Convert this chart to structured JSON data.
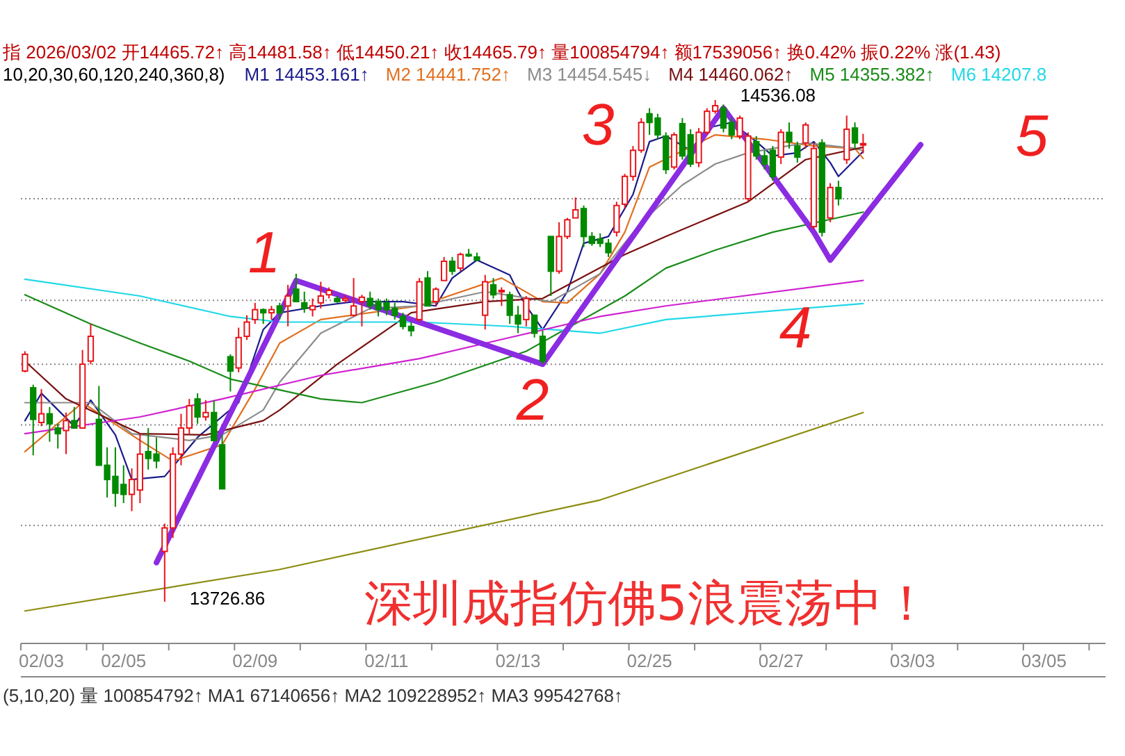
{
  "chart_data": {
    "type": "candlestick",
    "categories": [
      null,
      null,
      "02/03",
      null,
      null,
      null,
      null,
      null,
      null,
      null,
      null,
      null,
      "02/05",
      null,
      null,
      null,
      null,
      null,
      null,
      null,
      null,
      null,
      null,
      null,
      null,
      null,
      null,
      null,
      "02/09",
      null,
      null,
      null,
      null,
      null,
      null,
      null,
      null,
      null,
      null,
      null,
      null,
      null,
      null,
      null,
      "02/11",
      null,
      null,
      null,
      null,
      null,
      null,
      null,
      null,
      null,
      null,
      null,
      null,
      null,
      null,
      null,
      "02/13",
      null,
      null,
      null,
      null,
      null,
      null,
      null,
      null,
      null,
      null,
      null,
      null,
      null,
      null,
      null,
      "02/25",
      null,
      null,
      null,
      null,
      null,
      null,
      null,
      null,
      null,
      null,
      null,
      null,
      null,
      null,
      null,
      "02/27",
      null,
      null,
      null,
      null,
      null,
      null,
      null,
      null,
      null,
      null,
      null,
      null,
      null,
      null,
      null,
      "03/03",
      null,
      null,
      null,
      null,
      null,
      null,
      null,
      null,
      null,
      null,
      null,
      null,
      null,
      null,
      null,
      "03/05",
      null,
      null,
      null,
      null,
      null,
      null,
      null
    ],
    "ohlc": [
      [
        14099,
        14131,
        14097,
        14126
      ],
      [
        14072,
        14077,
        13963,
        14021
      ],
      [
        14016,
        14070,
        14010,
        14030
      ],
      [
        14030,
        14041,
        13985,
        14014
      ],
      [
        14007,
        14014,
        13974,
        13998
      ],
      [
        14003,
        14032,
        13965,
        14019
      ],
      [
        14019,
        14041,
        14007,
        14007
      ],
      [
        14007,
        14133,
        14007,
        14110
      ],
      [
        14115,
        14175,
        14110,
        14155
      ],
      [
        14021,
        14075,
        13947,
        13947
      ],
      [
        13947,
        13976,
        13895,
        13924
      ],
      [
        13929,
        13976,
        13880,
        13902
      ],
      [
        13916,
        13947,
        13886,
        13900
      ],
      [
        13900,
        13942,
        13873,
        13924
      ],
      [
        13907,
        13998,
        13886,
        13965
      ],
      [
        13969,
        14007,
        13940,
        13958
      ],
      [
        13965,
        13992,
        13942,
        13954
      ],
      [
        13808,
        13853,
        13726.86,
        13846
      ],
      [
        13846,
        13976,
        13830,
        13965
      ],
      [
        13965,
        14030,
        13947,
        14007
      ],
      [
        14007,
        14054,
        13998,
        14043
      ],
      [
        14054,
        14063,
        14014,
        14025
      ],
      [
        14025,
        14052,
        14019,
        14032
      ],
      [
        14032,
        14052,
        13987,
        13987
      ],
      [
        13980,
        13996,
        13909,
        13909
      ],
      [
        14122,
        14126,
        14066,
        14099
      ],
      [
        14104,
        14169,
        14097,
        14153
      ],
      [
        14155,
        14189,
        14149,
        14178
      ],
      [
        14182,
        14209,
        14175,
        14198
      ],
      [
        14198,
        14200,
        14175,
        14193
      ],
      [
        14193,
        14204,
        14182,
        14198
      ],
      [
        14204,
        14209,
        14182,
        14193
      ],
      [
        14204,
        14238,
        14171,
        14220
      ],
      [
        14231,
        14256,
        14211,
        14211
      ],
      [
        14209,
        14227,
        14193,
        14200
      ],
      [
        14198,
        14216,
        14187,
        14204
      ],
      [
        14209,
        14243,
        14200,
        14220
      ],
      [
        14222,
        14234,
        14216,
        14229
      ],
      [
        14216,
        14220,
        14209,
        14211
      ],
      [
        14213,
        14222,
        14209,
        14216
      ],
      [
        14189,
        14249,
        14187,
        14204
      ],
      [
        14211,
        14222,
        14171,
        14218
      ],
      [
        14216,
        14227,
        14198,
        14204
      ],
      [
        14211,
        14216,
        14187,
        14198
      ],
      [
        14209,
        14216,
        14189,
        14198
      ],
      [
        14200,
        14209,
        14182,
        14189
      ],
      [
        14187,
        14193,
        14166,
        14171
      ],
      [
        14171,
        14178,
        14155,
        14164
      ],
      [
        14182,
        14249,
        14178,
        14243
      ],
      [
        14249,
        14260,
        14204,
        14204
      ],
      [
        14211,
        14234,
        14204,
        14231
      ],
      [
        14245,
        14283,
        14245,
        14276
      ],
      [
        14276,
        14283,
        14254,
        14260
      ],
      [
        14265,
        14290,
        14260,
        14287
      ],
      [
        14287,
        14296,
        14283,
        14285
      ],
      [
        14283,
        14290,
        14276,
        14278
      ],
      [
        14189,
        14254,
        14166,
        14243
      ],
      [
        14238,
        14249,
        14216,
        14222
      ],
      [
        14227,
        14234,
        14204,
        14229
      ],
      [
        14222,
        14227,
        14175,
        14189
      ],
      [
        14189,
        14204,
        14160,
        14175
      ],
      [
        14182,
        14220,
        14171,
        14216
      ],
      [
        14189,
        14189,
        14153,
        14160
      ],
      [
        14155,
        14164,
        14110,
        14115
      ],
      [
        14316,
        14316,
        14220,
        14260
      ],
      [
        14260,
        14339,
        14256,
        14316
      ],
      [
        14316,
        14346,
        14312,
        14343
      ],
      [
        14346,
        14379,
        14346,
        14359
      ],
      [
        14361,
        14366,
        14299,
        14316
      ],
      [
        14316,
        14323,
        14301,
        14305
      ],
      [
        14312,
        14321,
        14299,
        14305
      ],
      [
        14305,
        14312,
        14283,
        14290
      ],
      [
        14323,
        14372,
        14316,
        14366
      ],
      [
        14368,
        14417,
        14361,
        14413
      ],
      [
        14413,
        14462,
        14406,
        14455
      ],
      [
        14455,
        14507,
        14451,
        14500
      ],
      [
        14514,
        14523,
        14480,
        14500
      ],
      [
        14507,
        14514,
        14473,
        14480
      ],
      [
        14478,
        14484,
        14417,
        14424
      ],
      [
        14428,
        14484,
        14424,
        14480
      ],
      [
        14498,
        14507,
        14440,
        14446
      ],
      [
        14480,
        14489,
        14428,
        14433
      ],
      [
        14435,
        14491,
        14428,
        14484
      ],
      [
        14484,
        14523,
        14480,
        14518
      ],
      [
        14518,
        14536.08,
        14514,
        14527
      ],
      [
        14523,
        14529,
        14484,
        14491
      ],
      [
        14500,
        14507,
        14473,
        14480
      ],
      [
        14478,
        14511,
        14473,
        14507
      ],
      [
        14377,
        14484,
        14372,
        14478
      ],
      [
        14469,
        14478,
        14440,
        14446
      ],
      [
        14446,
        14455,
        14424,
        14433
      ],
      [
        14455,
        14462,
        14406,
        14413
      ],
      [
        14444,
        14489,
        14433,
        14484
      ],
      [
        14484,
        14500,
        14458,
        14469
      ],
      [
        14462,
        14469,
        14435,
        14444
      ],
      [
        14467,
        14500,
        14458,
        14496
      ],
      [
        14332,
        14467,
        14328,
        14458
      ],
      [
        14467,
        14473,
        14316,
        14323
      ],
      [
        14346,
        14402,
        14339,
        14395
      ],
      [
        14395,
        14406,
        14366,
        14377
      ],
      [
        14440,
        14511,
        14433,
        14489
      ],
      [
        14491,
        14500,
        14458,
        14467
      ],
      [
        14465.72,
        14481.58,
        14450.21,
        14465.79
      ],
      null,
      null,
      null,
      null,
      null,
      null,
      null,
      null,
      null,
      null,
      null,
      null,
      null,
      null,
      null,
      null,
      null,
      null,
      null,
      null,
      null,
      null,
      null,
      null,
      null,
      null,
      null,
      null,
      null
    ],
    "series": [
      {
        "type": "line",
        "name": "M1 14453.161↑",
        "color": "#1a1a8c",
        "values": [
          14019,
          null,
          14063,
          null,
          null,
          null,
          14010,
          null,
          14052,
          null,
          null,
          13996,
          null,
          13924,
          null,
          null,
          null,
          13929,
          null,
          null,
          null,
          13992,
          null,
          null,
          null,
          null,
          14048,
          null,
          null,
          14166,
          null,
          14193,
          null,
          null,
          null,
          null,
          14204,
          null,
          null,
          null,
          14211,
          null,
          null,
          null,
          null,
          null,
          14211,
          null,
          null,
          null,
          14204,
          null,
          14249,
          null,
          null,
          14278,
          null,
          null,
          null,
          14254,
          14227,
          14204,
          null,
          14166,
          null,
          null,
          14227,
          null,
          14305,
          null,
          null,
          14316,
          null,
          null,
          14384,
          null,
          14469,
          null,
          14478,
          null,
          null,
          14455,
          null,
          14491,
          null,
          null,
          14500,
          null,
          null,
          14469,
          null,
          14446,
          null,
          null,
          14451,
          null,
          14469,
          null,
          14435,
          14413,
          null,
          null,
          14453.161,
          null,
          null,
          null,
          null,
          null,
          null,
          null,
          null,
          null,
          null,
          null,
          null,
          null,
          null,
          null,
          null,
          null,
          null,
          null,
          null,
          null,
          null,
          null,
          null,
          null,
          null,
          null,
          null,
          null
        ]
      },
      {
        "type": "line",
        "name": "M2 14441.752↑",
        "color": "#e07020",
        "values": [
          13969,
          null,
          null,
          null,
          null,
          null,
          null,
          14048,
          null,
          null,
          null,
          null,
          null,
          null,
          13987,
          null,
          null,
          null,
          13954,
          null,
          null,
          null,
          null,
          null,
          13980,
          null,
          null,
          null,
          14070,
          null,
          null,
          14144,
          null,
          null,
          null,
          null,
          14182,
          null,
          null,
          null,
          null,
          null,
          null,
          null,
          null,
          null,
          null,
          null,
          14204,
          null,
          null,
          null,
          null,
          null,
          null,
          null,
          null,
          null,
          14249,
          null,
          null,
          null,
          null,
          14211,
          null,
          null,
          14209,
          null,
          null,
          null,
          14256,
          null,
          null,
          14323,
          null,
          null,
          14428,
          null,
          null,
          null,
          null,
          null,
          null,
          null,
          14480,
          null,
          null,
          null,
          null,
          null,
          14473,
          null,
          null,
          null,
          null,
          null,
          14462,
          null,
          null,
          null,
          null,
          14458,
          14441.752,
          null,
          null,
          null,
          null,
          null,
          null,
          null,
          null,
          null,
          null,
          null,
          null,
          null,
          null,
          null,
          null,
          null,
          null,
          null,
          null,
          null,
          null,
          null,
          null,
          null,
          null,
          null,
          null,
          null
        ]
      },
      {
        "type": "line",
        "name": "M3 14454.545↓",
        "color": "#8c8c8c",
        "values": [
          14048,
          null,
          null,
          null,
          null,
          null,
          null,
          null,
          14048,
          null,
          null,
          null,
          null,
          13998,
          null,
          null,
          null,
          null,
          null,
          null,
          13987,
          null,
          null,
          null,
          13996,
          null,
          null,
          null,
          null,
          14036,
          null,
          14081,
          null,
          null,
          null,
          null,
          14160,
          null,
          null,
          null,
          null,
          null,
          14200,
          null,
          null,
          null,
          null,
          null,
          14204,
          null,
          null,
          null,
          null,
          null,
          null,
          null,
          14227,
          null,
          null,
          null,
          null,
          null,
          null,
          null,
          14211,
          null,
          null,
          null,
          null,
          null,
          14256,
          null,
          null,
          null,
          null,
          14339,
          null,
          null,
          null,
          null,
          14399,
          null,
          null,
          null,
          14433,
          null,
          null,
          null,
          14451,
          null,
          null,
          null,
          null,
          null,
          null,
          14467,
          null,
          null,
          null,
          null,
          null,
          14458,
          14454.545,
          null,
          null,
          null,
          null,
          null,
          null,
          null,
          null,
          null,
          null,
          null,
          null,
          null,
          null,
          null,
          null,
          null,
          null,
          null,
          null,
          null,
          null,
          null,
          null,
          null,
          null,
          null,
          null,
          null
        ]
      },
      {
        "type": "line",
        "name": "M4 14460.062↑",
        "color": "#7a1010",
        "values": [
          14115,
          null,
          null,
          null,
          null,
          14054,
          null,
          null,
          null,
          null,
          null,
          null,
          null,
          null,
          13998,
          null,
          null,
          null,
          null,
          null,
          null,
          null,
          13996,
          null,
          null,
          null,
          null,
          null,
          null,
          14019,
          null,
          14036,
          null,
          null,
          null,
          null,
          null,
          null,
          14110,
          null,
          null,
          null,
          null,
          null,
          null,
          null,
          null,
          14193,
          null,
          null,
          null,
          null,
          null,
          null,
          null,
          null,
          14211,
          null,
          null,
          null,
          null,
          null,
          null,
          14216,
          null,
          null,
          null,
          null,
          null,
          null,
          null,
          null,
          null,
          14287,
          null,
          null,
          null,
          null,
          14316,
          null,
          null,
          null,
          null,
          null,
          null,
          null,
          null,
          null,
          14372,
          null,
          null,
          null,
          null,
          null,
          null,
          14440,
          null,
          null,
          null,
          null,
          null,
          null,
          14460.062,
          null,
          null,
          null,
          null,
          null,
          null,
          null,
          null,
          null,
          null,
          null,
          null,
          null,
          null,
          null,
          null,
          null,
          null,
          null,
          null,
          null,
          null,
          null,
          null,
          null,
          null,
          null,
          null,
          null
        ]
      },
      {
        "type": "line",
        "name": "M5 14355.382↑",
        "color": "#1a8c1a",
        "values": [
          14222,
          null,
          null,
          null,
          null,
          null,
          null,
          null,
          14175,
          null,
          null,
          null,
          null,
          null,
          14144,
          null,
          null,
          null,
          null,
          null,
          14115,
          null,
          null,
          null,
          null,
          14086,
          null,
          null,
          null,
          null,
          null,
          null,
          null,
          null,
          null,
          null,
          14054,
          null,
          null,
          null,
          null,
          14048,
          null,
          null,
          null,
          null,
          null,
          null,
          null,
          null,
          14081,
          null,
          null,
          null,
          null,
          null,
          null,
          null,
          null,
          null,
          null,
          14131,
          null,
          null,
          null,
          null,
          null,
          null,
          null,
          null,
          null,
          null,
          null,
          14220,
          null,
          null,
          null,
          null,
          14265,
          null,
          null,
          null,
          null,
          null,
          14294,
          null,
          null,
          null,
          null,
          null,
          null,
          14323,
          null,
          null,
          null,
          null,
          null,
          null,
          null,
          null,
          null,
          null,
          14355.382,
          null,
          null,
          null,
          null,
          null,
          null,
          null,
          null,
          null,
          null,
          null,
          null,
          null,
          null,
          null,
          null,
          null,
          null,
          null,
          null,
          null,
          null,
          null,
          null,
          null,
          null,
          null,
          null,
          null
        ]
      },
      {
        "type": "line",
        "name": "M6 14207.8",
        "color": "#20d8e8",
        "values": [
          14247,
          null,
          null,
          null,
          null,
          null,
          null,
          null,
          null,
          null,
          null,
          null,
          null,
          null,
          14220,
          null,
          null,
          null,
          null,
          null,
          null,
          null,
          null,
          null,
          null,
          14187,
          null,
          null,
          null,
          null,
          null,
          14178,
          null,
          null,
          null,
          null,
          null,
          null,
          null,
          null,
          null,
          null,
          null,
          null,
          null,
          null,
          null,
          null,
          14178,
          null,
          null,
          null,
          null,
          null,
          null,
          null,
          null,
          null,
          null,
          14171,
          null,
          null,
          null,
          null,
          null,
          null,
          null,
          null,
          null,
          null,
          14160,
          null,
          null,
          null,
          null,
          null,
          null,
          null,
          14182,
          null,
          null,
          null,
          null,
          null,
          null,
          null,
          null,
          null,
          null,
          null,
          null,
          null,
          null,
          null,
          null,
          null,
          null,
          null,
          null,
          null,
          null,
          null,
          14207.8,
          null,
          null,
          null,
          null,
          null,
          null,
          null,
          null,
          null,
          null,
          null,
          null,
          null,
          null,
          null,
          null,
          null,
          null,
          null,
          null,
          null,
          null,
          null,
          null,
          null,
          null,
          null,
          null,
          null
        ]
      },
      {
        "type": "line",
        "color": "#d020d0",
        "values": [
          13998,
          null,
          null,
          null,
          null,
          null,
          null,
          null,
          null,
          null,
          null,
          null,
          null,
          null,
          14025,
          null,
          null,
          null,
          null,
          null,
          null,
          null,
          null,
          null,
          14054,
          null,
          null,
          null,
          null,
          null,
          null,
          null,
          null,
          null,
          null,
          null,
          14092,
          null,
          null,
          null,
          null,
          null,
          null,
          null,
          null,
          null,
          null,
          null,
          14119,
          null,
          null,
          null,
          null,
          null,
          null,
          null,
          null,
          null,
          null,
          14153,
          null,
          null,
          null,
          null,
          null,
          null,
          null,
          null,
          null,
          null,
          14187,
          null,
          null,
          null,
          null,
          null,
          null,
          null,
          14204,
          null,
          null,
          null,
          null,
          null,
          null,
          null,
          null,
          null,
          null,
          null,
          null,
          null,
          null,
          null,
          null,
          null,
          null,
          null,
          null,
          null,
          null,
          null,
          14245,
          null,
          null,
          null,
          null,
          null,
          null,
          null,
          null,
          null,
          null,
          null,
          null,
          null,
          null,
          null,
          null,
          null,
          null,
          null,
          null,
          null,
          null,
          null,
          null,
          null,
          null,
          null,
          null,
          null
        ]
      },
      {
        "type": "line",
        "color": "#8c8c10",
        "values": [
          13712,
          null,
          null,
          null,
          null,
          null,
          null,
          null,
          null,
          null,
          null,
          null,
          null,
          null,
          null,
          null,
          null,
          null,
          null,
          null,
          null,
          null,
          null,
          null,
          null,
          null,
          null,
          null,
          null,
          null,
          null,
          13779,
          null,
          null,
          null,
          null,
          null,
          null,
          null,
          null,
          null,
          null,
          null,
          null,
          null,
          null,
          null,
          null,
          null,
          null,
          null,
          null,
          null,
          null,
          null,
          null,
          null,
          null,
          null,
          null,
          null,
          null,
          null,
          null,
          null,
          null,
          null,
          null,
          null,
          null,
          13891,
          null,
          null,
          null,
          null,
          null,
          null,
          null,
          null,
          null,
          null,
          null,
          null,
          null,
          null,
          null,
          null,
          null,
          null,
          null,
          null,
          null,
          null,
          null,
          null,
          null,
          null,
          null,
          null,
          null,
          null,
          null,
          14032,
          null,
          null,
          null,
          null,
          null,
          null,
          null,
          null,
          null,
          null,
          null,
          null,
          null,
          null,
          null,
          null,
          null,
          null,
          null,
          null,
          null,
          null,
          null,
          null,
          null,
          null,
          null,
          null,
          null
        ]
      },
      {
        "type": "line",
        "color": "#8b2be2",
        "values": [
          null,
          null,
          null,
          null,
          null,
          null,
          null,
          null,
          null,
          null,
          null,
          null,
          null,
          null,
          null,
          null,
          13790,
          null,
          null,
          null,
          null,
          null,
          null,
          null,
          null,
          null,
          null,
          null,
          null,
          null,
          null,
          null,
          null,
          14245,
          null,
          null,
          null,
          null,
          null,
          null,
          null,
          null,
          null,
          null,
          null,
          null,
          null,
          null,
          null,
          null,
          null,
          null,
          null,
          null,
          null,
          null,
          null,
          null,
          null,
          null,
          null,
          null,
          null,
          14110,
          null,
          null,
          null,
          null,
          null,
          null,
          null,
          null,
          null,
          null,
          null,
          null,
          null,
          null,
          null,
          null,
          null,
          null,
          null,
          null,
          null,
          14523,
          null,
          null,
          null,
          null,
          null,
          null,
          null,
          null,
          null,
          null,
          14323,
          null,
          14278,
          null,
          null,
          null,
          null,
          null,
          null,
          null,
          null,
          null,
          null,
          14464,
          null,
          null,
          null,
          null,
          null,
          null,
          null,
          null,
          null,
          null,
          null,
          null,
          null,
          null,
          null,
          null,
          null,
          null,
          null,
          null,
          null,
          null
        ]
      }
    ],
    "yticks": [
      {
        "value": 14377,
        "label": null
      },
      {
        "value": 14213,
        "label": null
      },
      {
        "value": 14110,
        "label": null
      },
      {
        "value": 14012,
        "label": null
      },
      {
        "value": 13850,
        "label": null
      }
    ],
    "tick_labels": "x",
    "grid": "y",
    "legend": "top",
    "annotations": [
      "指 2026/03/02 开14465.72↑ 高14481.58↑ 低14450.21↑ 收14465.79↑ 量100854794↑ 额17539056↑ 换0.42% 振0.22% 涨(1.43)",
      "10,20,30,60,120,240,360,8)",
      "14536.08",
      "13726.86",
      "1",
      "2",
      "3",
      "4",
      "5",
      "深圳成指仿佛5浪震荡中！",
      "(5,10,20) 量 100854792↑ MA1 67140656↑ MA2 109228952↑ MA3 99542768↑"
    ]
  }
}
